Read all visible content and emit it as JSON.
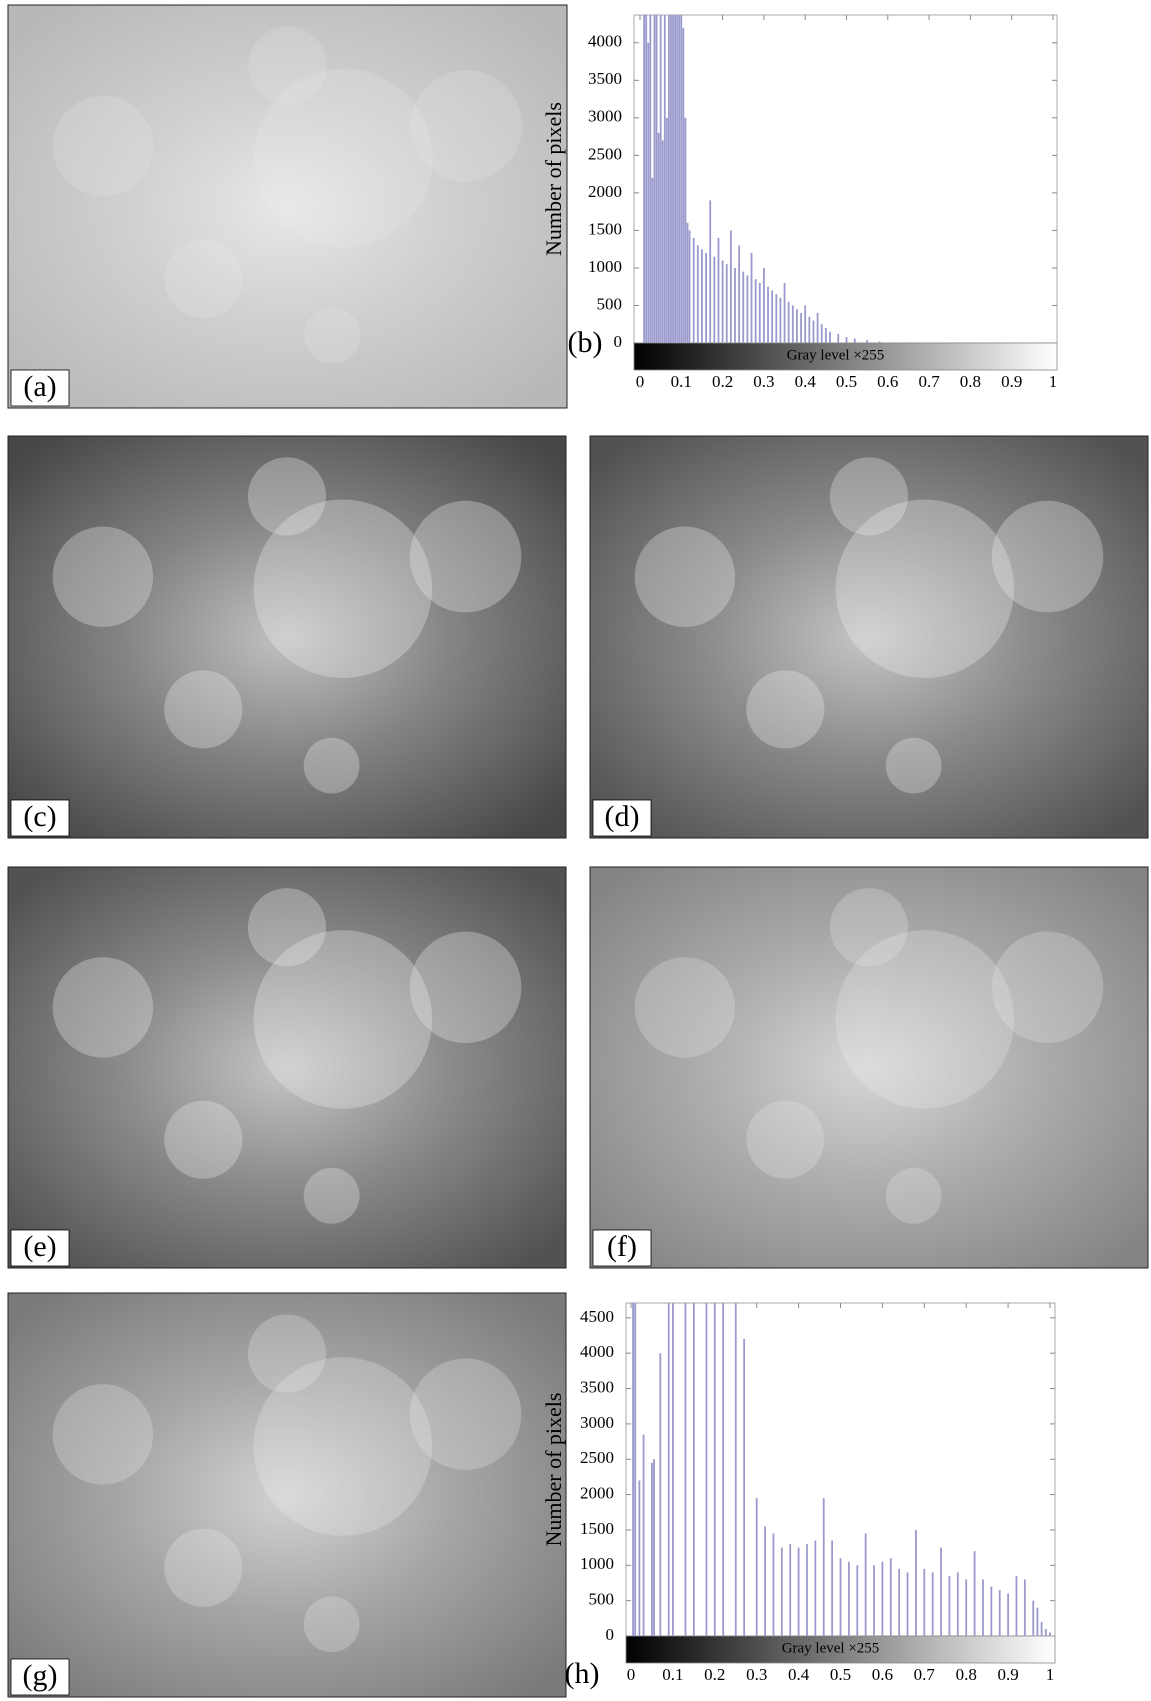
{
  "panels": [
    {
      "label": "(a)"
    },
    {
      "label": "(c)"
    },
    {
      "label": "(d)"
    },
    {
      "label": "(e)"
    },
    {
      "label": "(f)"
    },
    {
      "label": "(g)"
    }
  ],
  "chart_data": [
    {
      "type": "bar",
      "panel_label": "(b)",
      "ylabel": "Number of pixels",
      "gradient_label": "Gray level ×255",
      "color": "#9999cc",
      "x": [
        0.01,
        0.015,
        0.02,
        0.025,
        0.03,
        0.035,
        0.04,
        0.045,
        0.05,
        0.055,
        0.06,
        0.065,
        0.07,
        0.075,
        0.08,
        0.085,
        0.09,
        0.095,
        0.1,
        0.105,
        0.11,
        0.115,
        0.12,
        0.13,
        0.14,
        0.15,
        0.16,
        0.17,
        0.18,
        0.19,
        0.2,
        0.21,
        0.22,
        0.23,
        0.24,
        0.25,
        0.26,
        0.27,
        0.28,
        0.29,
        0.3,
        0.31,
        0.32,
        0.33,
        0.34,
        0.35,
        0.36,
        0.37,
        0.38,
        0.39,
        0.4,
        0.41,
        0.42,
        0.43,
        0.44,
        0.45,
        0.46,
        0.48,
        0.5,
        0.52,
        0.55,
        0.58
      ],
      "values": [
        4370,
        4370,
        4000,
        4370,
        2200,
        4370,
        4370,
        2800,
        4370,
        2700,
        4370,
        3000,
        4370,
        4370,
        4370,
        4370,
        4370,
        4370,
        4370,
        4200,
        3000,
        1600,
        1500,
        1400,
        1300,
        1250,
        1200,
        1900,
        1150,
        1400,
        1100,
        1050,
        1500,
        1000,
        1300,
        950,
        900,
        1200,
        850,
        800,
        1000,
        750,
        700,
        650,
        600,
        800,
        550,
        500,
        450,
        400,
        500,
        350,
        300,
        400,
        250,
        200,
        150,
        120,
        80,
        60,
        40,
        20
      ],
      "xlim": [
        0,
        1
      ],
      "ylim": [
        0,
        4370
      ],
      "xticks": [
        0,
        0.1,
        0.2,
        0.3,
        0.4,
        0.5,
        0.6,
        0.7,
        0.8,
        0.9,
        1
      ],
      "yticks": [
        0,
        500,
        1000,
        1500,
        2000,
        2500,
        3000,
        3500,
        4000
      ]
    },
    {
      "type": "bar",
      "panel_label": "(h)",
      "ylabel": "Number of pixels",
      "gradient_label": "Gray level ×255",
      "color": "#9999cc",
      "x": [
        0.005,
        0.01,
        0.02,
        0.03,
        0.05,
        0.055,
        0.07,
        0.09,
        0.1,
        0.13,
        0.15,
        0.18,
        0.2,
        0.22,
        0.25,
        0.27,
        0.3,
        0.32,
        0.34,
        0.36,
        0.38,
        0.4,
        0.42,
        0.44,
        0.46,
        0.48,
        0.5,
        0.52,
        0.54,
        0.56,
        0.58,
        0.6,
        0.62,
        0.64,
        0.66,
        0.68,
        0.7,
        0.72,
        0.74,
        0.76,
        0.78,
        0.8,
        0.82,
        0.84,
        0.86,
        0.88,
        0.9,
        0.92,
        0.94,
        0.96,
        0.97,
        0.98,
        0.99,
        1
      ],
      "values": [
        4710,
        4710,
        2200,
        2850,
        2450,
        2500,
        4000,
        4710,
        4710,
        4710,
        4710,
        4710,
        4710,
        4710,
        4710,
        4200,
        1950,
        1550,
        1450,
        1250,
        1300,
        1250,
        1300,
        1350,
        1950,
        1350,
        1100,
        1050,
        1000,
        1450,
        1000,
        1050,
        1100,
        950,
        900,
        1500,
        950,
        900,
        1250,
        850,
        900,
        800,
        1200,
        800,
        700,
        650,
        600,
        850,
        800,
        500,
        400,
        200,
        100,
        50
      ],
      "xlim": [
        0,
        1
      ],
      "ylim": [
        0,
        4710
      ],
      "xticks": [
        0,
        0.1,
        0.2,
        0.3,
        0.4,
        0.5,
        0.6,
        0.7,
        0.8,
        0.9,
        1
      ],
      "yticks": [
        0,
        500,
        1000,
        1500,
        2000,
        2500,
        3000,
        3500,
        4000,
        4500
      ]
    }
  ]
}
